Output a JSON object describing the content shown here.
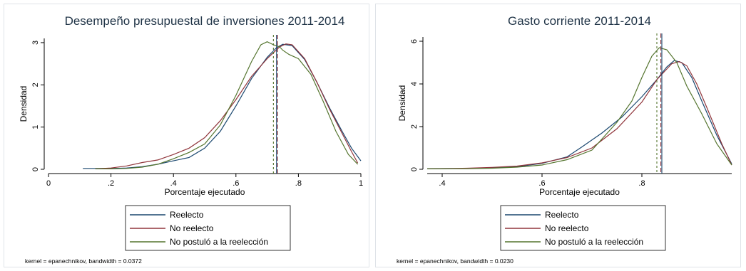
{
  "chart_data": [
    {
      "type": "line",
      "title": "Desempeño presupuestal de inversiones 2011-2014",
      "xlabel": "Porcentaje ejecutado",
      "ylabel": "Densidad",
      "xlim": [
        0,
        1
      ],
      "ylim": [
        0,
        3.1
      ],
      "xticks": [
        0,
        0.2,
        0.4,
        0.6,
        0.8,
        1
      ],
      "xtick_labels": [
        "0",
        ".2",
        ".4",
        ".6",
        ".8",
        "1"
      ],
      "yticks": [
        0,
        1,
        2,
        3
      ],
      "ytick_labels": [
        "0",
        "1",
        "2",
        "3"
      ],
      "grid": false,
      "legend_position": "bottom",
      "note": "kernel = epanechnikov, bandwidth = 0.0372",
      "series": [
        {
          "name": "Reelecto",
          "color": "#1a476f",
          "points": [
            [
              0.11,
              0.02
            ],
            [
              0.2,
              0.02
            ],
            [
              0.25,
              0.03
            ],
            [
              0.3,
              0.06
            ],
            [
              0.35,
              0.12
            ],
            [
              0.4,
              0.2
            ],
            [
              0.45,
              0.28
            ],
            [
              0.5,
              0.5
            ],
            [
              0.55,
              0.9
            ],
            [
              0.6,
              1.5
            ],
            [
              0.65,
              2.15
            ],
            [
              0.7,
              2.65
            ],
            [
              0.73,
              2.88
            ],
            [
              0.75,
              2.96
            ],
            [
              0.78,
              2.93
            ],
            [
              0.82,
              2.6
            ],
            [
              0.86,
              2.05
            ],
            [
              0.9,
              1.45
            ],
            [
              0.94,
              0.9
            ],
            [
              0.97,
              0.5
            ],
            [
              1.0,
              0.2
            ]
          ],
          "mean": 0.73
        },
        {
          "name": "No reelecto",
          "color": "#90353b",
          "points": [
            [
              0.15,
              0.01
            ],
            [
              0.2,
              0.03
            ],
            [
              0.25,
              0.08
            ],
            [
              0.3,
              0.16
            ],
            [
              0.35,
              0.22
            ],
            [
              0.4,
              0.35
            ],
            [
              0.45,
              0.5
            ],
            [
              0.5,
              0.75
            ],
            [
              0.55,
              1.15
            ],
            [
              0.6,
              1.65
            ],
            [
              0.65,
              2.2
            ],
            [
              0.7,
              2.62
            ],
            [
              0.74,
              2.9
            ],
            [
              0.76,
              2.97
            ],
            [
              0.78,
              2.95
            ],
            [
              0.82,
              2.62
            ],
            [
              0.86,
              2.05
            ],
            [
              0.9,
              1.42
            ],
            [
              0.94,
              0.85
            ],
            [
              0.97,
              0.42
            ],
            [
              0.99,
              0.15
            ]
          ],
          "mean": 0.733
        },
        {
          "name": "No postuló a la reelección",
          "color": "#55752f",
          "points": [
            [
              0.15,
              0.01
            ],
            [
              0.2,
              0.01
            ],
            [
              0.25,
              0.02
            ],
            [
              0.3,
              0.05
            ],
            [
              0.35,
              0.12
            ],
            [
              0.4,
              0.25
            ],
            [
              0.45,
              0.4
            ],
            [
              0.5,
              0.6
            ],
            [
              0.55,
              1.05
            ],
            [
              0.6,
              1.75
            ],
            [
              0.65,
              2.55
            ],
            [
              0.68,
              2.95
            ],
            [
              0.7,
              3.02
            ],
            [
              0.72,
              2.95
            ],
            [
              0.74,
              2.9
            ],
            [
              0.75,
              2.82
            ],
            [
              0.77,
              2.72
            ],
            [
              0.8,
              2.62
            ],
            [
              0.84,
              2.25
            ],
            [
              0.88,
              1.6
            ],
            [
              0.92,
              0.9
            ],
            [
              0.96,
              0.35
            ],
            [
              0.99,
              0.12
            ]
          ],
          "mean": 0.72
        }
      ]
    },
    {
      "type": "line",
      "title": "Gasto corriente 2011-2014",
      "xlabel": "Porcentaje ejecutado",
      "ylabel": "Densidad",
      "xlim": [
        0.37,
        0.98
      ],
      "ylim": [
        0,
        6.2
      ],
      "xticks": [
        0.4,
        0.6,
        0.8
      ],
      "xtick_labels": [
        ".4",
        ".6",
        ".8"
      ],
      "yticks": [
        0,
        2,
        4,
        6
      ],
      "ytick_labels": [
        "0",
        "2",
        "4",
        "6"
      ],
      "grid": false,
      "legend_position": "bottom",
      "note": "kernel = epanechnikov, bandwidth = 0.0230",
      "series": [
        {
          "name": "Reelecto",
          "color": "#1a476f",
          "points": [
            [
              0.37,
              0.03
            ],
            [
              0.45,
              0.04
            ],
            [
              0.5,
              0.07
            ],
            [
              0.55,
              0.12
            ],
            [
              0.6,
              0.28
            ],
            [
              0.65,
              0.58
            ],
            [
              0.68,
              1.05
            ],
            [
              0.72,
              1.7
            ],
            [
              0.76,
              2.45
            ],
            [
              0.8,
              3.4
            ],
            [
              0.83,
              4.2
            ],
            [
              0.85,
              4.8
            ],
            [
              0.865,
              5.1
            ],
            [
              0.88,
              5.0
            ],
            [
              0.9,
              4.3
            ],
            [
              0.92,
              3.2
            ],
            [
              0.95,
              1.6
            ],
            [
              0.98,
              0.25
            ]
          ],
          "mean": 0.84
        },
        {
          "name": "No reelecto",
          "color": "#90353b",
          "points": [
            [
              0.37,
              0.02
            ],
            [
              0.45,
              0.05
            ],
            [
              0.5,
              0.09
            ],
            [
              0.55,
              0.15
            ],
            [
              0.6,
              0.3
            ],
            [
              0.65,
              0.55
            ],
            [
              0.7,
              1.0
            ],
            [
              0.75,
              1.9
            ],
            [
              0.8,
              3.15
            ],
            [
              0.83,
              4.2
            ],
            [
              0.86,
              4.95
            ],
            [
              0.875,
              5.05
            ],
            [
              0.89,
              4.85
            ],
            [
              0.91,
              4.0
            ],
            [
              0.93,
              2.9
            ],
            [
              0.96,
              1.2
            ],
            [
              0.98,
              0.2
            ]
          ],
          "mean": 0.838
        },
        {
          "name": "No postuló a la reelección",
          "color": "#55752f",
          "points": [
            [
              0.37,
              0.02
            ],
            [
              0.45,
              0.03
            ],
            [
              0.5,
              0.05
            ],
            [
              0.55,
              0.1
            ],
            [
              0.6,
              0.2
            ],
            [
              0.65,
              0.45
            ],
            [
              0.7,
              0.9
            ],
            [
              0.75,
              2.2
            ],
            [
              0.78,
              3.2
            ],
            [
              0.8,
              4.3
            ],
            [
              0.82,
              5.3
            ],
            [
              0.835,
              5.7
            ],
            [
              0.85,
              5.6
            ],
            [
              0.87,
              5.0
            ],
            [
              0.89,
              3.9
            ],
            [
              0.92,
              2.6
            ],
            [
              0.95,
              1.2
            ],
            [
              0.98,
              0.2
            ]
          ],
          "mean": 0.83
        }
      ]
    }
  ]
}
